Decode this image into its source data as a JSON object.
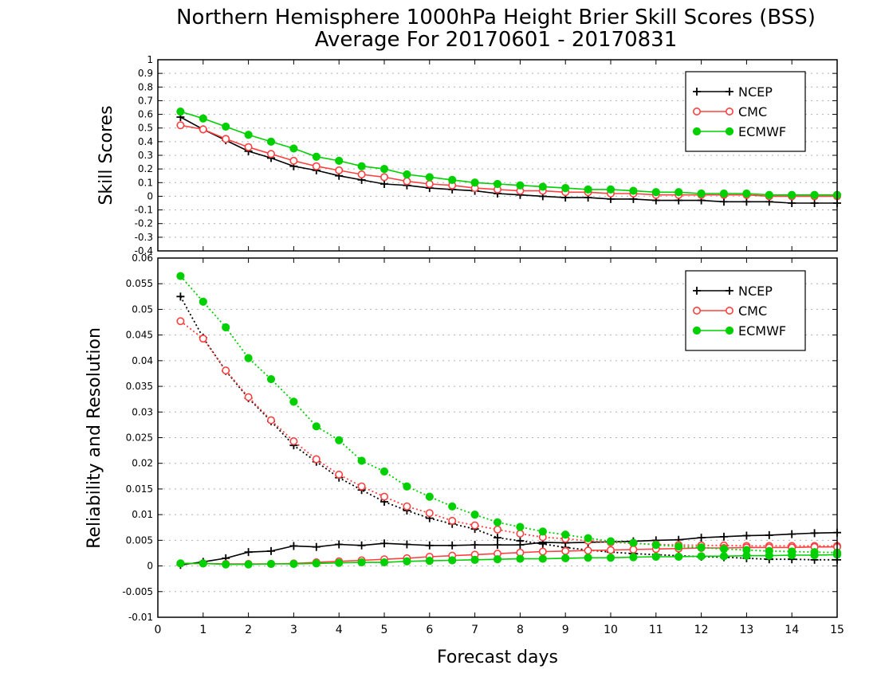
{
  "title_line1": "Northern Hemisphere 1000hPa Height Brier Skill Scores (BSS)",
  "title_line2": "Average For 20170601 - 20170831",
  "xlabel": "Forecast days",
  "colors": {
    "NCEP": "#000000",
    "CMC": "#ff4040",
    "ECMWF": "#00d000"
  },
  "chart_data": [
    {
      "type": "line",
      "panel": "top",
      "ylabel": "Skill Scores",
      "xlim": [
        0,
        15
      ],
      "ylim": [
        -0.4,
        1
      ],
      "grid": true,
      "legend_position": "top-right",
      "xticks": [
        0,
        1,
        2,
        3,
        4,
        5,
        6,
        7,
        8,
        9,
        10,
        11,
        12,
        13,
        14,
        15
      ],
      "yticks": [
        -0.4,
        -0.3,
        -0.2,
        -0.1,
        0,
        0.1,
        0.2,
        0.3,
        0.4,
        0.5,
        0.6,
        0.7,
        0.8,
        0.9,
        1
      ],
      "x": [
        0.5,
        1,
        1.5,
        2,
        2.5,
        3,
        3.5,
        4,
        4.5,
        5,
        5.5,
        6,
        6.5,
        7,
        7.5,
        8,
        8.5,
        9,
        9.5,
        10,
        10.5,
        11,
        11.5,
        12,
        12.5,
        13,
        13.5,
        14,
        14.5,
        15
      ],
      "series": [
        {
          "name": "NCEP",
          "marker": "plus",
          "style": "solid",
          "values": [
            0.58,
            0.49,
            0.41,
            0.33,
            0.28,
            0.22,
            0.19,
            0.15,
            0.12,
            0.09,
            0.08,
            0.06,
            0.05,
            0.04,
            0.02,
            0.01,
            0.0,
            -0.01,
            -0.01,
            -0.02,
            -0.02,
            -0.03,
            -0.03,
            -0.03,
            -0.04,
            -0.04,
            -0.04,
            -0.05,
            -0.05,
            -0.05
          ]
        },
        {
          "name": "CMC",
          "marker": "open-circle",
          "style": "solid",
          "values": [
            0.52,
            0.49,
            0.42,
            0.36,
            0.31,
            0.26,
            0.22,
            0.19,
            0.16,
            0.14,
            0.11,
            0.09,
            0.08,
            0.06,
            0.05,
            0.04,
            0.04,
            0.03,
            0.03,
            0.02,
            0.02,
            0.01,
            0.01,
            0.01,
            0.01,
            0.01,
            0.0,
            0.0,
            0.0,
            0.0
          ]
        },
        {
          "name": "ECMWF",
          "marker": "filled-circle",
          "style": "solid",
          "values": [
            0.62,
            0.57,
            0.51,
            0.45,
            0.4,
            0.35,
            0.29,
            0.26,
            0.22,
            0.2,
            0.16,
            0.14,
            0.12,
            0.1,
            0.09,
            0.08,
            0.07,
            0.06,
            0.05,
            0.05,
            0.04,
            0.03,
            0.03,
            0.02,
            0.02,
            0.02,
            0.01,
            0.01,
            0.01,
            0.01
          ]
        }
      ]
    },
    {
      "type": "line",
      "panel": "bottom",
      "ylabel": "Reliability and Resolution",
      "xlabel": "Forecast days",
      "xlim": [
        0,
        15
      ],
      "ylim": [
        -0.01,
        0.06
      ],
      "grid": true,
      "legend_position": "top-right",
      "xticks": [
        0,
        1,
        2,
        3,
        4,
        5,
        6,
        7,
        8,
        9,
        10,
        11,
        12,
        13,
        14,
        15
      ],
      "yticks": [
        -0.01,
        -0.005,
        0,
        0.005,
        0.01,
        0.015,
        0.02,
        0.025,
        0.03,
        0.035,
        0.04,
        0.045,
        0.05,
        0.055,
        0.06
      ],
      "x": [
        0.5,
        1,
        1.5,
        2,
        2.5,
        3,
        3.5,
        4,
        4.5,
        5,
        5.5,
        6,
        6.5,
        7,
        7.5,
        8,
        8.5,
        9,
        9.5,
        10,
        10.5,
        11,
        11.5,
        12,
        12.5,
        13,
        13.5,
        14,
        14.5,
        15
      ],
      "series": [
        {
          "name": "NCEP",
          "kind": "resolution",
          "marker": "plus",
          "style": "dotted",
          "values": [
            0.0525,
            0.0445,
            0.038,
            0.0327,
            0.0282,
            0.0235,
            0.0203,
            0.0172,
            0.0148,
            0.0125,
            0.0108,
            0.0093,
            0.0082,
            0.0072,
            0.0055,
            0.0049,
            0.0043,
            0.0036,
            0.0031,
            0.0027,
            0.0024,
            0.0022,
            0.002,
            0.0018,
            0.0017,
            0.0015,
            0.0013,
            0.0013,
            0.0012,
            0.0012
          ]
        },
        {
          "name": "NCEP",
          "kind": "reliability",
          "marker": "plus",
          "style": "solid",
          "values": [
            0.0002,
            0.0008,
            0.0015,
            0.0027,
            0.0029,
            0.0039,
            0.0037,
            0.0042,
            0.004,
            0.0044,
            0.0042,
            0.004,
            0.004,
            0.0041,
            0.0041,
            0.0041,
            0.0046,
            0.0045,
            0.0046,
            0.0047,
            0.0048,
            0.005,
            0.0051,
            0.0055,
            0.0057,
            0.0059,
            0.006,
            0.0062,
            0.0064,
            0.0065
          ]
        },
        {
          "name": "CMC",
          "kind": "resolution",
          "marker": "open-circle",
          "style": "dotted",
          "values": [
            0.0477,
            0.0443,
            0.0381,
            0.0329,
            0.0284,
            0.0243,
            0.0208,
            0.0178,
            0.0155,
            0.0135,
            0.0116,
            0.0103,
            0.0088,
            0.0079,
            0.0071,
            0.0063,
            0.0056,
            0.0053,
            0.0049,
            0.0046,
            0.0044,
            0.0042,
            0.0041,
            0.004,
            0.004,
            0.0039,
            0.0039,
            0.0039,
            0.0039,
            0.0039
          ]
        },
        {
          "name": "CMC",
          "kind": "reliability",
          "marker": "open-circle",
          "style": "solid",
          "values": [
            0.0005,
            0.0005,
            0.0004,
            0.0004,
            0.0004,
            0.0005,
            0.0007,
            0.0009,
            0.0011,
            0.0013,
            0.0015,
            0.0018,
            0.002,
            0.0022,
            0.0024,
            0.0026,
            0.0028,
            0.0029,
            0.003,
            0.0031,
            0.0032,
            0.0033,
            0.0034,
            0.0035,
            0.0035,
            0.0036,
            0.0036,
            0.0036,
            0.0037,
            0.0037
          ]
        },
        {
          "name": "ECMWF",
          "kind": "resolution",
          "marker": "filled-circle",
          "style": "dotted",
          "values": [
            0.0565,
            0.0515,
            0.0465,
            0.0405,
            0.0364,
            0.032,
            0.0272,
            0.0245,
            0.0205,
            0.0184,
            0.0155,
            0.0135,
            0.0116,
            0.01,
            0.0085,
            0.0076,
            0.0067,
            0.0061,
            0.0054,
            0.0048,
            0.0045,
            0.0041,
            0.0038,
            0.0036,
            0.0033,
            0.0031,
            0.0029,
            0.0028,
            0.0027,
            0.0026
          ]
        },
        {
          "name": "ECMWF",
          "kind": "reliability",
          "marker": "filled-circle",
          "style": "solid",
          "values": [
            0.0005,
            0.0005,
            0.0003,
            0.0003,
            0.0004,
            0.0004,
            0.0005,
            0.0006,
            0.0007,
            0.0007,
            0.0009,
            0.001,
            0.0011,
            0.0012,
            0.0013,
            0.0014,
            0.0014,
            0.0015,
            0.0016,
            0.0016,
            0.0017,
            0.0018,
            0.0018,
            0.0019,
            0.0019,
            0.002,
            0.002,
            0.0021,
            0.0021,
            0.0022
          ]
        }
      ]
    }
  ]
}
